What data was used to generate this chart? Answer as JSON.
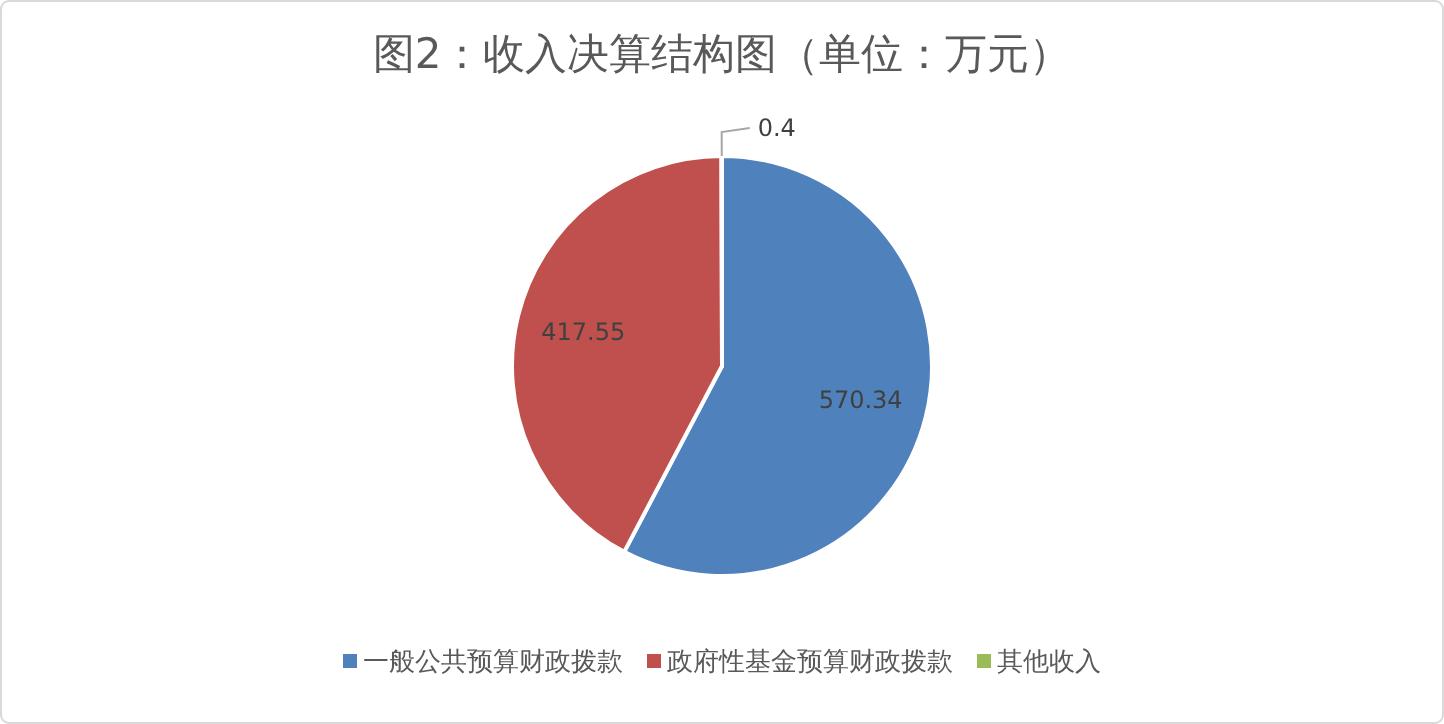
{
  "chart_data": {
    "type": "pie",
    "title": "图2：收入决算结构图（单位：万元）",
    "categories": [
      "一般公共预算财政拨款",
      "政府性基金预算财政拨款",
      "其他收入"
    ],
    "values": [
      570.34,
      417.55,
      0.4
    ],
    "colors": [
      "#4f81bd",
      "#c0504d",
      "#9bbb59"
    ],
    "data_labels": true,
    "legend": "bottom"
  }
}
